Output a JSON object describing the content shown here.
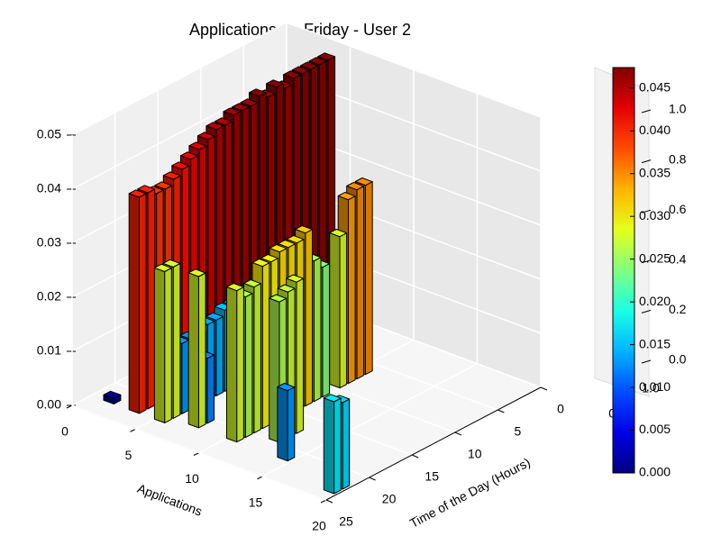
{
  "chart_data": [
    {
      "type": "bar3d",
      "title": "Applications on Friday - User 2",
      "xlabel": "Applications",
      "ylabel": "Time of the Day (Hours)",
      "xlim": [
        0,
        20
      ],
      "xticks": [
        0,
        5,
        10,
        15,
        20
      ],
      "ylim": [
        0,
        25
      ],
      "yticks": [
        0,
        5,
        10,
        15,
        20,
        25
      ],
      "zlim": [
        0,
        0.05
      ],
      "zticks": [
        {
          "value": 0,
          "label": "0.00"
        },
        {
          "value": 0.01,
          "label": "0.01"
        },
        {
          "value": 0.02,
          "label": "0.02"
        },
        {
          "value": 0.03,
          "label": "0.03"
        },
        {
          "value": 0.04,
          "label": "0.04"
        },
        {
          "value": 0.05,
          "label": "0.05"
        }
      ],
      "colormap": "jet",
      "clim": [
        0,
        0.0474
      ],
      "colorbar_ticks": [
        {
          "value": 0,
          "label": "0.000"
        },
        {
          "value": 0.005,
          "label": "0.005"
        },
        {
          "value": 0.01,
          "label": "0.010"
        },
        {
          "value": 0.015,
          "label": "0.015"
        },
        {
          "value": 0.02,
          "label": "0.020"
        },
        {
          "value": 0.025,
          "label": "0.025"
        },
        {
          "value": 0.03,
          "label": "0.030"
        },
        {
          "value": 0.035,
          "label": "0.035"
        },
        {
          "value": 0.04,
          "label": "0.040"
        },
        {
          "value": 0.045,
          "label": "0.045"
        }
      ],
      "bars": {
        "x": [
          3,
          3,
          3,
          3,
          3,
          3,
          3,
          3,
          3,
          3,
          3,
          3,
          3,
          3,
          3,
          3,
          3,
          3,
          3,
          3,
          3,
          3,
          3,
          1,
          5,
          5,
          5,
          5,
          5,
          5,
          5,
          5,
          5,
          5,
          7,
          7,
          10,
          10,
          10,
          10,
          10,
          10,
          10,
          10,
          10,
          10,
          10,
          10,
          10,
          10,
          10,
          12,
          12,
          12,
          14,
          19,
          19
        ],
        "y": [
          22,
          21,
          20,
          19,
          18,
          17,
          16,
          15,
          14,
          13,
          12,
          11,
          10,
          9,
          8,
          7,
          6,
          5,
          4,
          3,
          2,
          1,
          0,
          22,
          22,
          21,
          20,
          19,
          18,
          17,
          16,
          15,
          14,
          13,
          21,
          20,
          21,
          20,
          19,
          18,
          17,
          16,
          15,
          14,
          13,
          12,
          11,
          9,
          8,
          7,
          6,
          19,
          18,
          17,
          21,
          22,
          23
        ],
        "values": [
          0.04,
          0.04,
          0.039,
          0.039,
          0.04,
          0.041,
          0.042,
          0.043,
          0.044,
          0.045,
          0.045,
          0.046,
          0.046,
          0.046,
          0.047,
          0.046,
          0.047,
          0.046,
          0.047,
          0.047,
          0.047,
          0.047,
          0.047,
          0.001,
          0.028,
          0.028,
          0.013,
          0.013,
          0.013,
          0.014,
          0.014,
          0.015,
          0.015,
          0.016,
          0.028,
          0.012,
          0.028,
          0.026,
          0.027,
          0.03,
          0.03,
          0.031,
          0.031,
          0.031,
          0.032,
          0.026,
          0.024,
          0.028,
          0.034,
          0.035,
          0.035,
          0.026,
          0.027,
          0.028,
          0.013,
          0.016,
          0.017
        ]
      }
    },
    {
      "type": "axes3d",
      "zticks": [
        {
          "value": 0,
          "label": "0.0"
        },
        {
          "value": 0.2,
          "label": "0.2"
        },
        {
          "value": 0.4,
          "label": "0.4"
        },
        {
          "value": 0.6,
          "label": "0.6"
        },
        {
          "value": 0.8,
          "label": "0.8"
        },
        {
          "value": 1,
          "label": "1.0"
        }
      ],
      "xticks": [
        {
          "value": 0,
          "label": "0.0"
        },
        {
          "value": 1,
          "label": "1.0"
        }
      ]
    }
  ]
}
